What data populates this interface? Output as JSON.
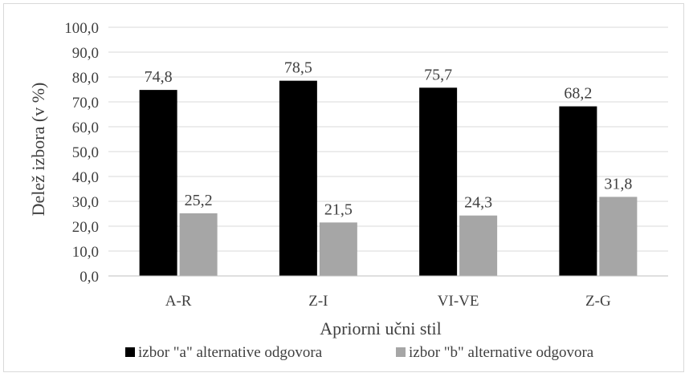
{
  "chart_data": {
    "type": "bar",
    "title": "",
    "xlabel": "Apriorni učni stil",
    "ylabel": "Delež izbora (v %)",
    "categories": [
      "A-R",
      "Z-I",
      "VI-VE",
      "Z-G"
    ],
    "series": [
      {
        "name": "izbor \"a\" alternative odgovora",
        "color": "#000000",
        "values": [
          74.8,
          78.5,
          75.7,
          68.2
        ],
        "labels": [
          "74,8",
          "78,5",
          "75,7",
          "68,2"
        ]
      },
      {
        "name": "izbor \"b\" alternative odgovora",
        "color": "#a6a6a6",
        "values": [
          25.2,
          21.5,
          24.3,
          31.8
        ],
        "labels": [
          "25,2",
          "21,5",
          "24,3",
          "31,8"
        ]
      }
    ],
    "ylim": [
      0,
      100
    ],
    "yticks": [
      0,
      10,
      20,
      30,
      40,
      50,
      60,
      70,
      80,
      90,
      100
    ],
    "ytick_labels": [
      "0,0",
      "10,0",
      "20,0",
      "30,0",
      "40,0",
      "50,0",
      "60,0",
      "70,0",
      "80,0",
      "90,0",
      "100,0"
    ],
    "grid": true,
    "legend_position": "bottom",
    "colors": {
      "gridline": "#d9d9d9",
      "axis": "#bfbfbf",
      "text": "#404040"
    }
  }
}
